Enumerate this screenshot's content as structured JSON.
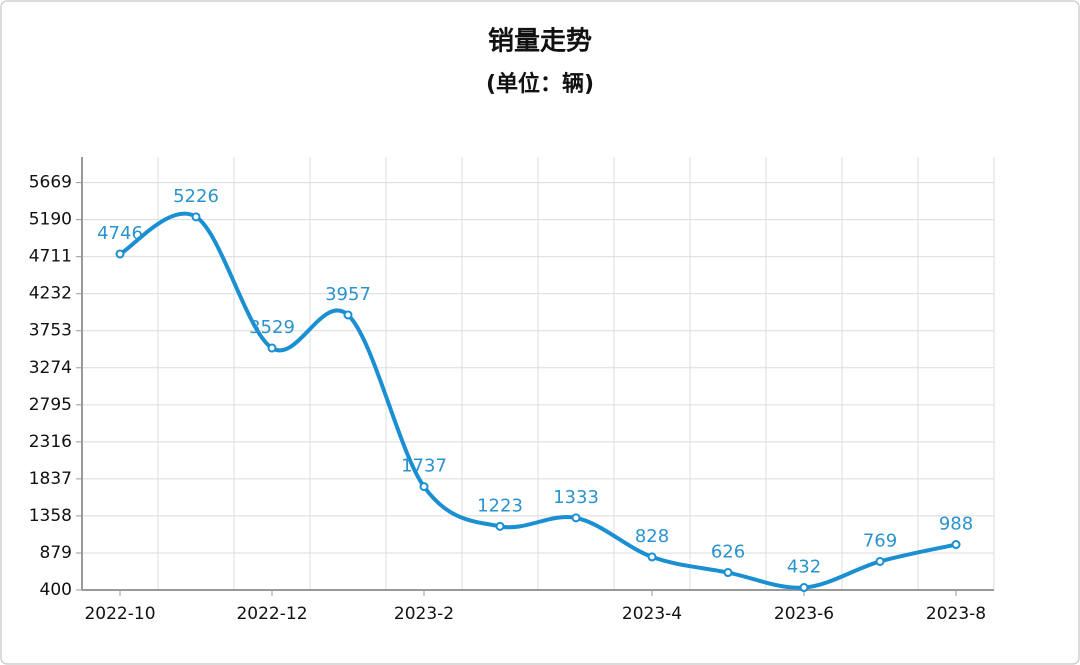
{
  "chart_data": {
    "type": "line",
    "title": "销量走势",
    "subtitle": "(单位：辆)",
    "categories": [
      "2022-10",
      null,
      "2022-12",
      null,
      "2023-2",
      null,
      null,
      "2023-4",
      null,
      "2023-6",
      null,
      "2023-8"
    ],
    "series": [
      {
        "name": "销量",
        "color": "#1a8fd2",
        "values": [
          4746,
          5226,
          3529,
          3957,
          1737,
          1223,
          1333,
          828,
          626,
          432,
          769,
          988
        ]
      }
    ],
    "ylim": [
      400,
      6000
    ],
    "yticks": [
      400,
      879,
      1358,
      1837,
      2316,
      2795,
      3274,
      3753,
      4232,
      4711,
      5190,
      5669
    ],
    "grid": true,
    "smooth": true
  }
}
